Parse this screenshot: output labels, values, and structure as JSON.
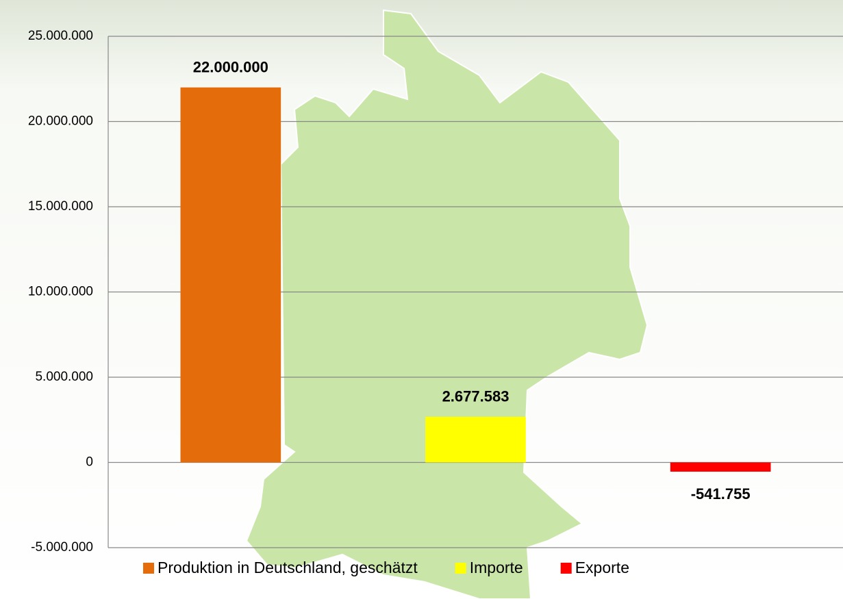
{
  "chart_data": {
    "type": "bar",
    "categories": [
      null,
      null,
      null
    ],
    "series": [
      {
        "name": "Produktion in Deutschland, geschätzt",
        "color": "#e46c0a",
        "values": [
          22000000,
          null,
          null
        ],
        "value_labels": [
          "22.000.000",
          null,
          null
        ]
      },
      {
        "name": "Importe",
        "color": "#ffff00",
        "values": [
          null,
          2677583,
          null
        ],
        "value_labels": [
          null,
          "2.677.583",
          null
        ]
      },
      {
        "name": "Exporte",
        "color": "#ff0000",
        "values": [
          null,
          null,
          -541755
        ],
        "value_labels": [
          null,
          null,
          "-541.755"
        ]
      }
    ],
    "ylim": [
      -5000000,
      25000000
    ],
    "yticks": [
      {
        "value": -5000000,
        "label": "-5.000.000"
      },
      0,
      {
        "value": 5000000,
        "label": "5.000.000"
      },
      {
        "value": 10000000,
        "label": "10.000.000"
      },
      {
        "value": 15000000,
        "label": "15.000.000"
      },
      {
        "value": 20000000,
        "label": "20.000.000"
      },
      {
        "value": 25000000,
        "label": "25.000.000"
      }
    ],
    "grid": true,
    "legend": "bottom"
  }
}
